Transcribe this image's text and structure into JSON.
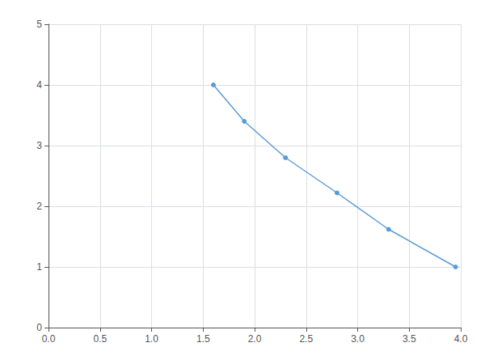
{
  "chart_data": {
    "type": "line",
    "x": [
      1.6,
      1.9,
      2.3,
      2.8,
      3.3,
      3.95
    ],
    "values": [
      4.0,
      3.4,
      2.8,
      2.22,
      1.62,
      1.0
    ],
    "color": "#5b9bd5",
    "marker": "circle",
    "line_style": "solid",
    "xlim": [
      0.0,
      4.0
    ],
    "ylim": [
      0,
      5
    ],
    "xticks": [
      {
        "value": 0,
        "label": "0.0"
      },
      0.5,
      {
        "value": 1,
        "label": "1.0"
      },
      1.5,
      {
        "value": 2,
        "label": "2.0"
      },
      2.5,
      {
        "value": 3,
        "label": "3.0"
      },
      3.5,
      {
        "value": 4,
        "label": "4.0"
      }
    ],
    "yticks": [
      0,
      1,
      2,
      3,
      4,
      5
    ],
    "grid": true
  }
}
